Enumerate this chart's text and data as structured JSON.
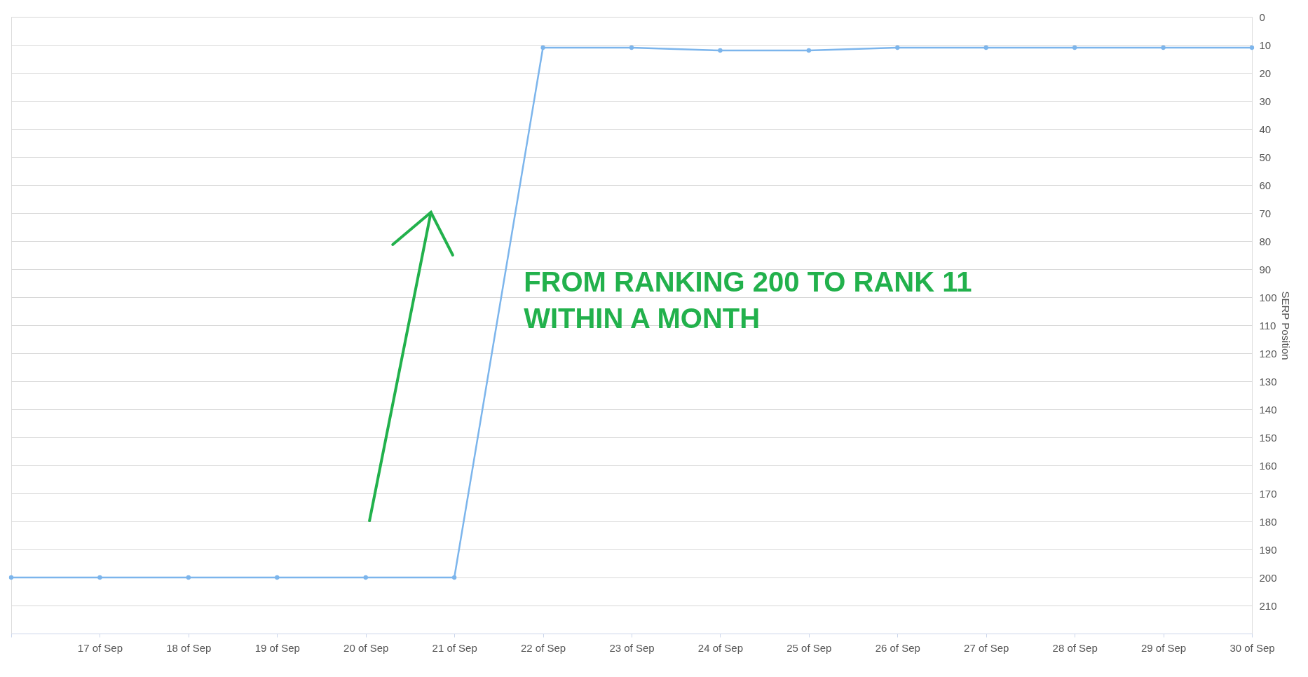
{
  "chart_data": {
    "type": "line",
    "categories": [
      null,
      "17 of Sep",
      "18 of Sep",
      "19 of Sep",
      "20 of Sep",
      "21 of Sep",
      "22 of Sep",
      "23 of Sep",
      "24 of Sep",
      "25 of Sep",
      "26 of Sep",
      "27 of Sep",
      "28 of Sep",
      "29 of Sep",
      "30 of Sep"
    ],
    "series": [
      {
        "color": "#7cb5ec",
        "values": [
          200,
          200,
          200,
          200,
          200,
          200,
          11,
          11,
          12,
          12,
          11,
          11,
          11,
          11,
          11
        ]
      }
    ],
    "ylabel": "SERP Position",
    "ylim": [
      220,
      0
    ],
    "yticks": [
      0,
      10,
      20,
      30,
      40,
      50,
      60,
      70,
      80,
      90,
      100,
      110,
      120,
      130,
      140,
      150,
      160,
      170,
      180,
      190,
      200,
      210
    ],
    "grid": "y",
    "marker": "circle",
    "line_style": "solid",
    "annotations": [
      "FROM RANKING 200 TO RANK 11\nWITHIN A MONTH"
    ]
  }
}
